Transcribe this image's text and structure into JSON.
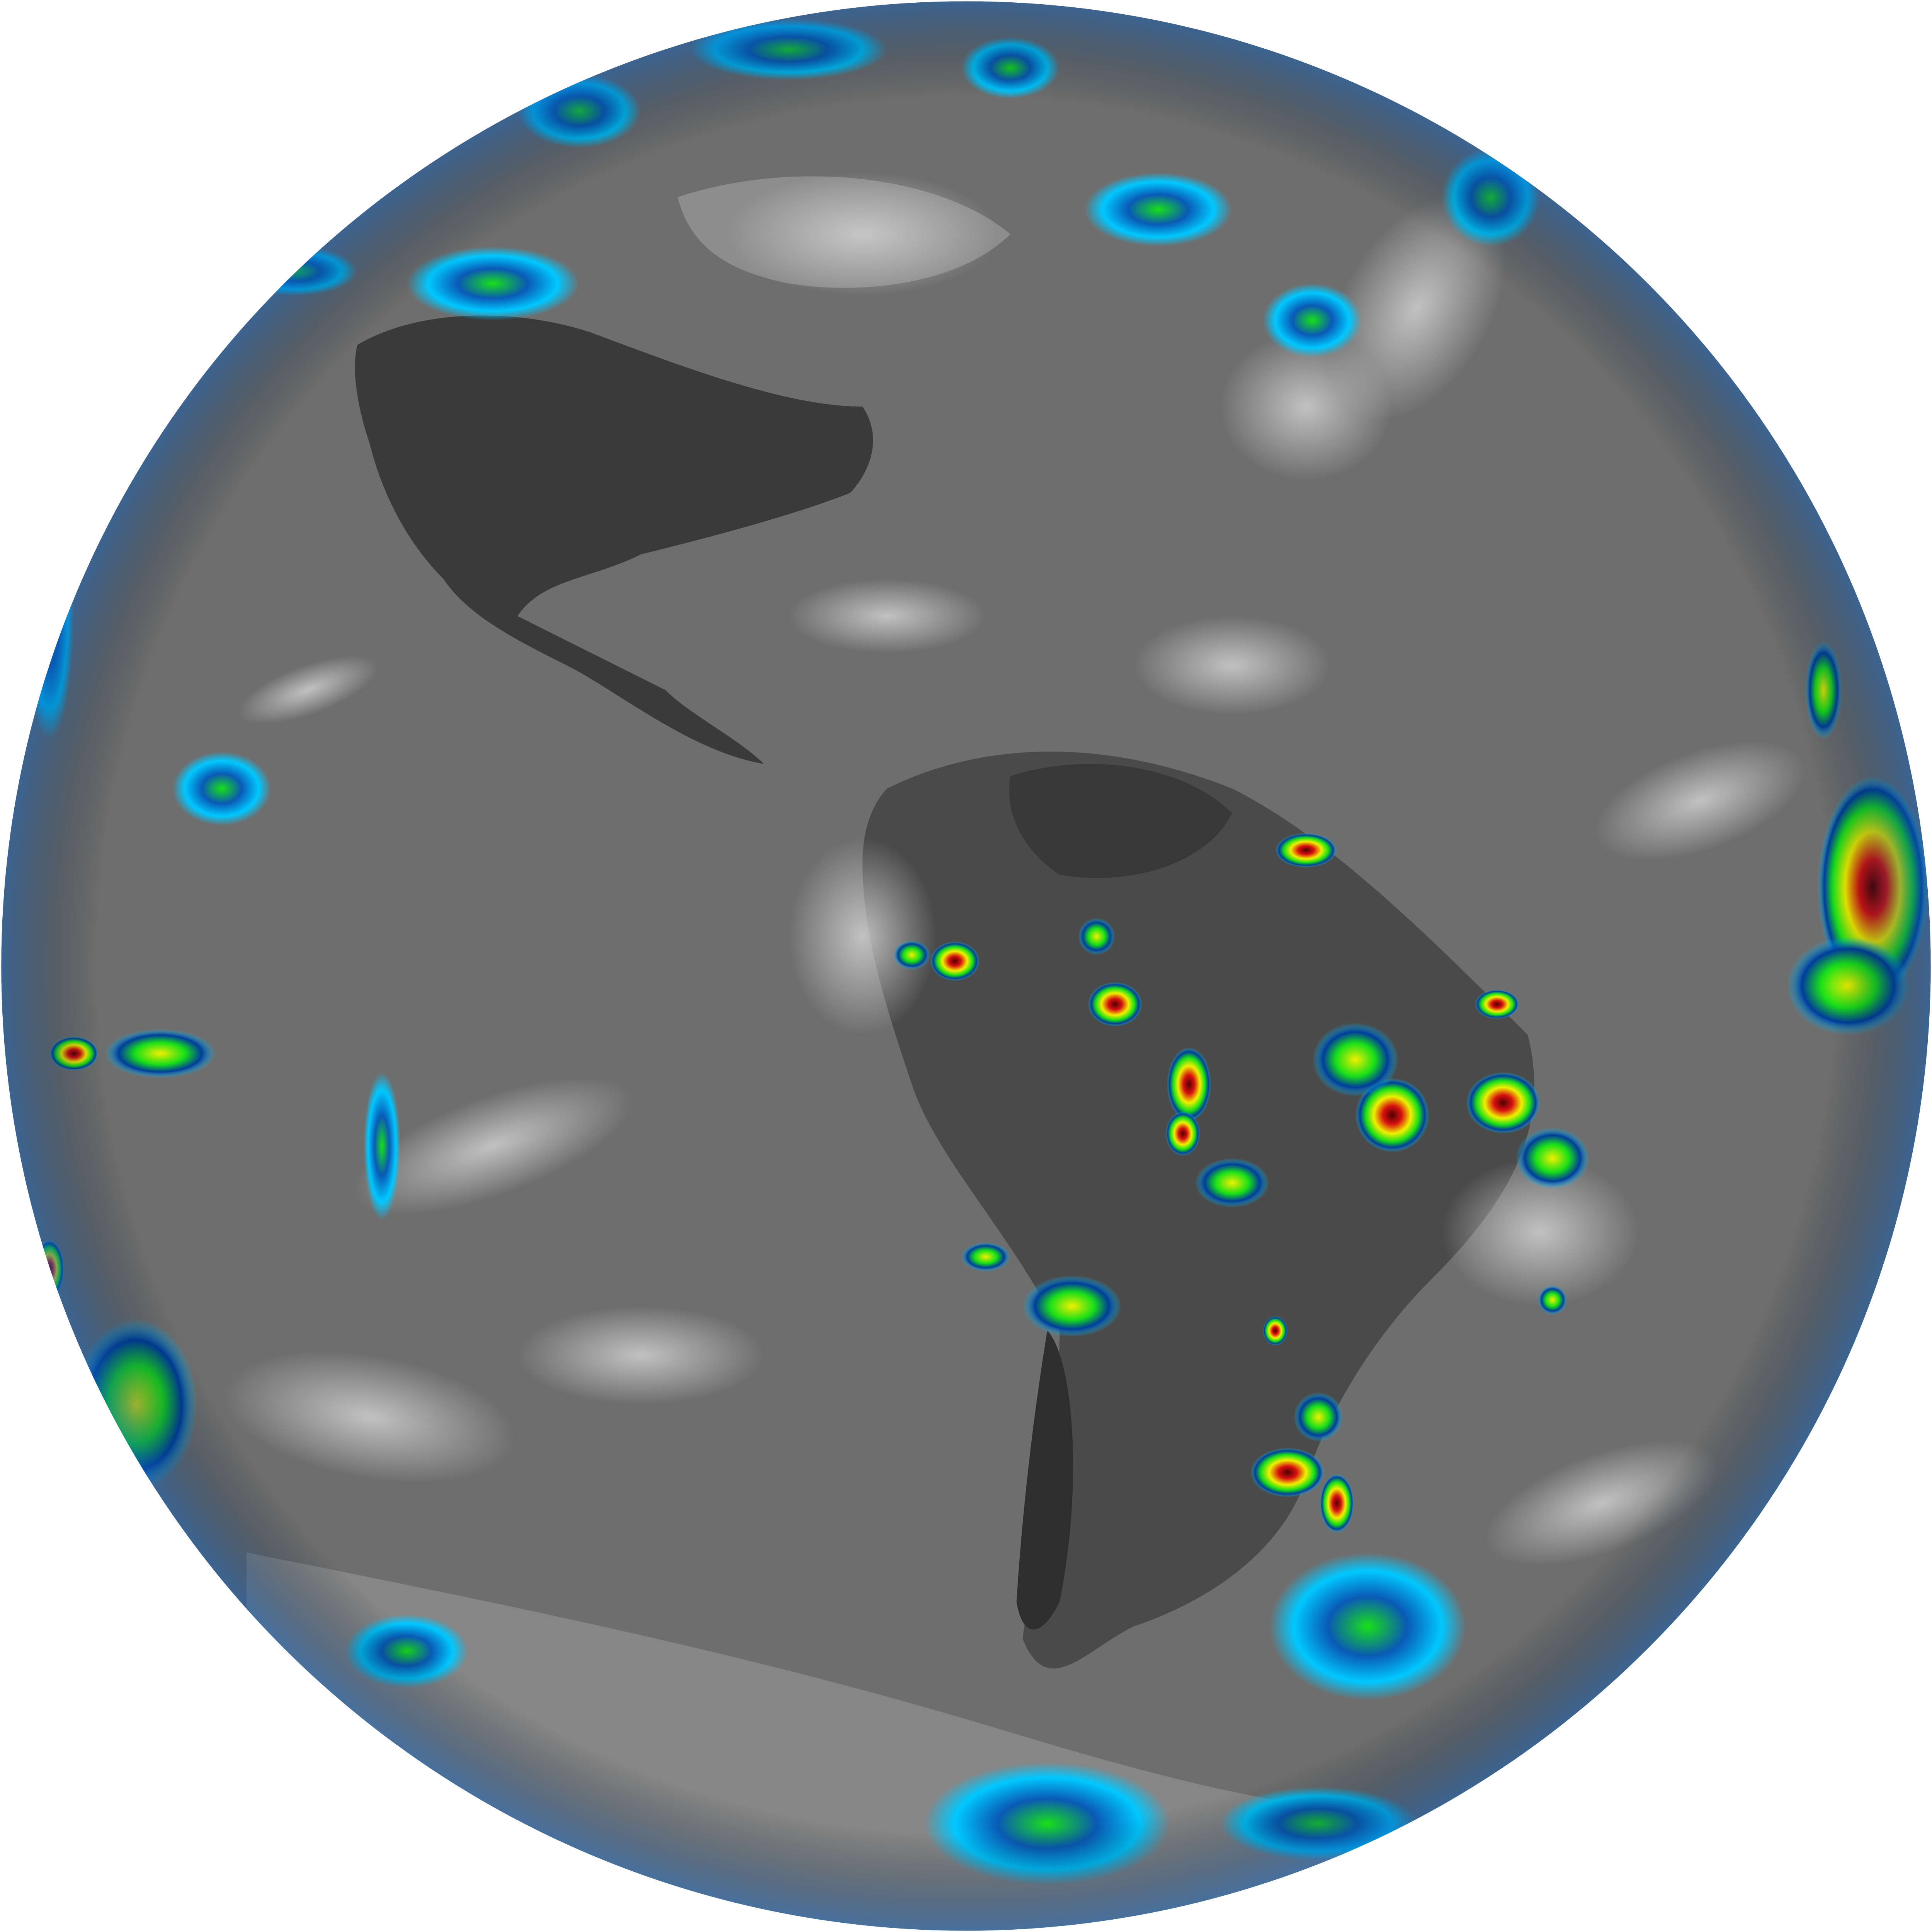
{
  "image": {
    "subject": "full-disk-earth-infrared",
    "colors": {
      "background": "#ffffff",
      "ocean_gray": "#6e6e6e",
      "land_dark": "#2e2e2e",
      "cloud_light": "#c8c8c8",
      "cold_cyan": "#00c8ff",
      "cold_blue": "#003c9c",
      "green": "#18e018",
      "yellow": "#f0f000",
      "red": "#d81010",
      "dark_red": "#500000"
    }
  }
}
